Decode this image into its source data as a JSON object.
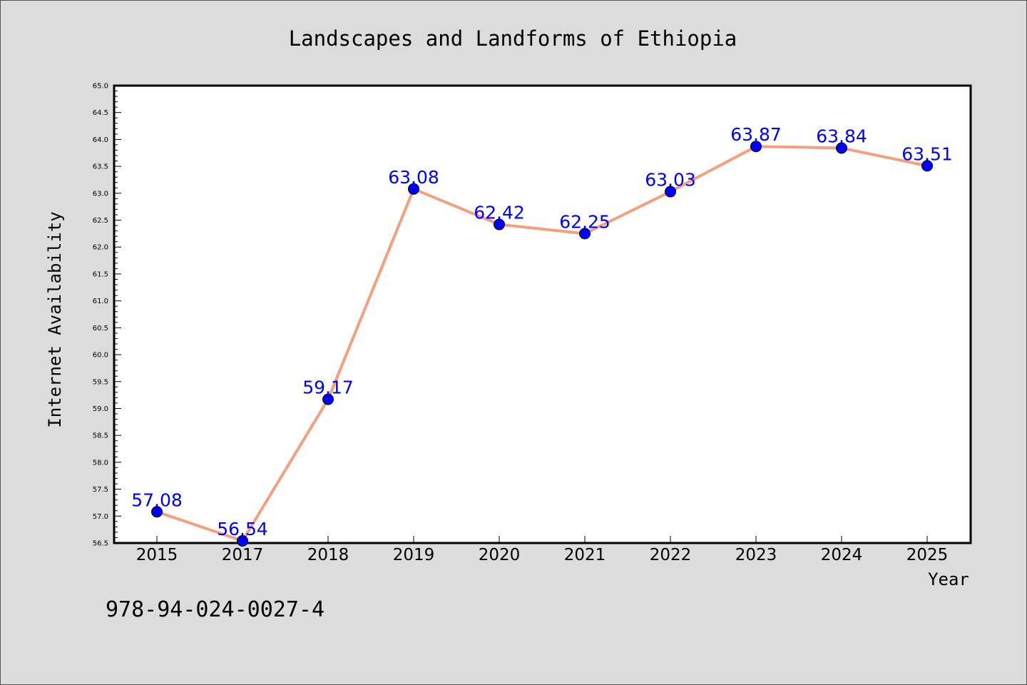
{
  "chart_data": {
    "type": "line",
    "title": "Landscapes and Landforms of Ethiopia",
    "xlabel": "Year",
    "ylabel": "Internet Availability",
    "categories": [
      "2015",
      "2017",
      "2018",
      "2019",
      "2020",
      "2021",
      "2022",
      "2023",
      "2024",
      "2025"
    ],
    "series": [
      {
        "values": [
          57.08,
          56.54,
          59.17,
          63.08,
          62.42,
          62.25,
          63.03,
          63.87,
          63.84,
          63.51
        ]
      }
    ],
    "data_labels": [
      "57.08",
      "56.54",
      "59.17",
      "63.08",
      "62.42",
      "62.25",
      "63.03",
      "63.87",
      "63.84",
      "63.51"
    ],
    "ylim": [
      56.5,
      65.0
    ],
    "yticks": [
      "56.5",
      "57.0",
      "57.5",
      "58.0",
      "58.5",
      "59.0",
      "59.5",
      "60.0",
      "60.5",
      "61.0",
      "61.5",
      "62.0",
      "62.5",
      "63.0",
      "63.5",
      "64.0",
      "64.5",
      "65.0"
    ],
    "grid": false,
    "legend": "none",
    "colors": {
      "line": "#f4a07f",
      "marker": "#0000ff",
      "data_label": "#0000ff",
      "plot_background": "#ffffff",
      "figure_background": "#dcdcdc"
    }
  },
  "footer_text": "978-94-024-0027-4"
}
